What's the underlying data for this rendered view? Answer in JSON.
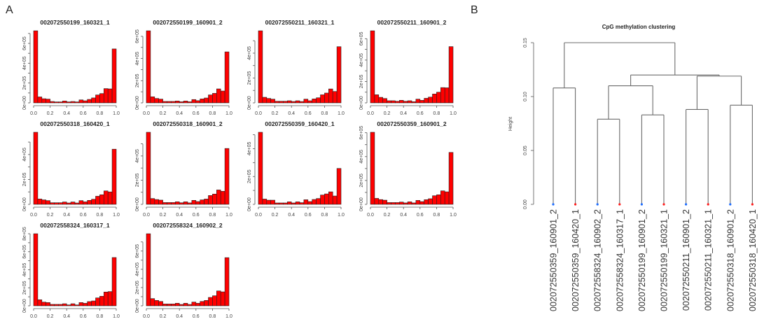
{
  "panel_labels": {
    "a": "A",
    "b": "B"
  },
  "colors": {
    "bar_fill": "#ff0000",
    "bar_stroke": "#222222",
    "branch": "#6b6b6b",
    "leaf_1": "#ff1a1a",
    "leaf_2": "#1a6bff"
  },
  "chart_data": [
    {
      "type": "bar",
      "title": "002072550199_160321_1",
      "xlim": [
        0,
        1
      ],
      "bins": 20,
      "x_ticks": [
        "0.0",
        "0.2",
        "0.4",
        "0.6",
        "0.8",
        "1.0"
      ],
      "y_tick_labels": [
        "0e+00",
        "2e+05",
        "4e+05",
        "6e+05"
      ],
      "values": [
        727000,
        60000,
        42000,
        38000,
        14000,
        10000,
        10000,
        19000,
        10000,
        14000,
        10000,
        30000,
        21000,
        35000,
        50000,
        80000,
        94000,
        144000,
        141000,
        544000
      ]
    },
    {
      "type": "bar",
      "title": "002072550199_160901_2",
      "xlim": [
        0,
        1
      ],
      "bins": 20,
      "x_ticks": [
        "0.0",
        "0.2",
        "0.4",
        "0.6",
        "0.8",
        "1.0"
      ],
      "y_tick_labels": [
        "0e+00",
        "2e+05",
        "4e+05",
        "6e+05"
      ],
      "values": [
        650000,
        55000,
        40000,
        34000,
        13000,
        13000,
        13000,
        17000,
        10000,
        17000,
        10000,
        30000,
        20000,
        36000,
        44000,
        72000,
        86000,
        126000,
        107000,
        460000
      ]
    },
    {
      "type": "bar",
      "title": "002072550211_160321_1",
      "xlim": [
        0,
        1
      ],
      "bins": 20,
      "x_ticks": [
        "0.0",
        "0.2",
        "0.4",
        "0.6",
        "0.8",
        "1.0"
      ],
      "y_tick_labels": [
        "0e+00",
        "2e+05",
        "4e+05"
      ],
      "values": [
        580000,
        45000,
        36000,
        30000,
        13000,
        13000,
        13000,
        17000,
        11000,
        17000,
        11000,
        30000,
        17000,
        32000,
        41000,
        65000,
        79000,
        112000,
        92000,
        452000
      ]
    },
    {
      "type": "bar",
      "title": "002072550211_160901_2",
      "xlim": [
        0,
        1
      ],
      "bins": 20,
      "x_ticks": [
        "0.0",
        "0.2",
        "0.4",
        "0.6",
        "0.8",
        "1.0"
      ],
      "y_tick_labels": [
        "0e+00",
        "2e+05",
        "4e+05",
        "6e+05"
      ],
      "values": [
        674000,
        76000,
        52000,
        41000,
        20000,
        20000,
        15000,
        24000,
        15000,
        20000,
        11000,
        35000,
        24000,
        43000,
        54000,
        83000,
        100000,
        143000,
        141000,
        526000
      ]
    },
    {
      "type": "bar",
      "title": "002072550318_160420_1",
      "xlim": [
        0,
        1
      ],
      "bins": 20,
      "x_ticks": [
        "0.0",
        "0.2",
        "0.4",
        "0.6",
        "0.8",
        "1.0"
      ],
      "y_tick_labels": [
        "0e+00",
        "2e+05",
        "4e+05"
      ],
      "values": [
        579000,
        43000,
        36000,
        30000,
        13000,
        13000,
        13000,
        19000,
        11000,
        19000,
        11000,
        30000,
        20000,
        32000,
        41000,
        65000,
        77000,
        108000,
        100000,
        443000
      ]
    },
    {
      "type": "bar",
      "title": "002072550318_160901_2",
      "xlim": [
        0,
        1
      ],
      "bins": 20,
      "x_ticks": [
        "0.0",
        "0.2",
        "0.4",
        "0.6",
        "0.8",
        "1.0"
      ],
      "y_tick_labels": [
        "0e+00",
        "2e+05",
        "4e+05",
        "6e+05"
      ],
      "values": [
        596000,
        48000,
        40000,
        35000,
        15000,
        15000,
        15000,
        21000,
        13000,
        21000,
        12000,
        33000,
        23000,
        37000,
        44000,
        73000,
        85000,
        119000,
        108000,
        462000
      ]
    },
    {
      "type": "bar",
      "title": "002072550359_160420_1",
      "xlim": [
        0,
        1
      ],
      "bins": 20,
      "x_ticks": [
        "0.0",
        "0.2",
        "0.4",
        "0.6",
        "0.8",
        "1.0"
      ],
      "y_tick_labels": [
        "0e+00",
        "2e+05",
        "4e+05"
      ],
      "values": [
        518000,
        38000,
        30000,
        30000,
        10000,
        10000,
        10000,
        18000,
        10000,
        18000,
        12000,
        33000,
        20000,
        35000,
        42000,
        67000,
        75000,
        90000,
        60000,
        258000
      ]
    },
    {
      "type": "bar",
      "title": "002072550359_160901_2",
      "xlim": [
        0,
        1
      ],
      "bins": 20,
      "x_ticks": [
        "0.0",
        "0.2",
        "0.4",
        "0.6",
        "0.8",
        "1.0"
      ],
      "y_tick_labels": [
        "0e+00",
        "2e+05",
        "4e+05",
        "6e+05"
      ],
      "values": [
        604000,
        50000,
        40000,
        35000,
        15000,
        15000,
        15000,
        19000,
        12000,
        21000,
        12000,
        33000,
        23000,
        39000,
        47000,
        72000,
        80000,
        113000,
        105000,
        435000
      ]
    },
    {
      "type": "bar",
      "title": "002072558324_160317_1",
      "xlim": [
        0,
        1
      ],
      "bins": 20,
      "x_ticks": [
        "0.0",
        "0.2",
        "0.4",
        "0.6",
        "0.8",
        "1.0"
      ],
      "y_tick_labels": [
        "0e+00",
        "2e+05",
        "4e+05",
        "6e+05",
        "8e+05"
      ],
      "values": [
        800000,
        67000,
        41000,
        36000,
        16000,
        16000,
        16000,
        23000,
        10000,
        23000,
        10000,
        36000,
        28000,
        47000,
        54000,
        88000,
        106000,
        153000,
        158000,
        536000
      ]
    },
    {
      "type": "bar",
      "title": "002072558324_160902_2",
      "xlim": [
        0,
        1
      ],
      "bins": 20,
      "x_ticks": [
        "0.0",
        "0.2",
        "0.4",
        "0.6",
        "0.8",
        "1.0"
      ],
      "y_tick_labels": [
        "0e+00",
        "2e+05",
        "4e+05",
        "6e+05",
        "8e+05"
      ],
      "values": [
        790000,
        79000,
        59000,
        48000,
        20000,
        20000,
        20000,
        28000,
        15000,
        28000,
        15000,
        41000,
        28000,
        48000,
        59000,
        92000,
        110000,
        163000,
        153000,
        528000
      ]
    },
    {
      "type": "dendrogram",
      "title": "CpG methylation clustering",
      "ylabel": "Height",
      "ylim": [
        0,
        0.15
      ],
      "y_tick_labels": [
        "0.00",
        "0.05",
        "0.10",
        "0.15"
      ],
      "leaves": [
        {
          "label": "002072550359_160901_2",
          "group": "2"
        },
        {
          "label": "002072550359_160420_1",
          "group": "1"
        },
        {
          "label": "002072558324_160902_2",
          "group": "2"
        },
        {
          "label": "002072558324_160317_1",
          "group": "1"
        },
        {
          "label": "002072550199_160901_2",
          "group": "2"
        },
        {
          "label": "002072550199_160321_1",
          "group": "1"
        },
        {
          "label": "002072550211_160901_2",
          "group": "2"
        },
        {
          "label": "002072550211_160321_1",
          "group": "1"
        },
        {
          "label": "002072550318_160901_2",
          "group": "2"
        },
        {
          "label": "002072550318_160420_1",
          "group": "1"
        }
      ],
      "tree": {
        "height": 0.15,
        "children": [
          {
            "height": 0.108,
            "children": [
              0,
              1
            ]
          },
          {
            "height": 0.12,
            "children": [
              {
                "height": 0.11,
                "children": [
                  {
                    "height": 0.079,
                    "children": [
                      2,
                      3
                    ]
                  },
                  {
                    "height": 0.083,
                    "children": [
                      4,
                      5
                    ]
                  }
                ]
              },
              {
                "height": 0.119,
                "children": [
                  {
                    "height": 0.088,
                    "children": [
                      6,
                      7
                    ]
                  },
                  {
                    "height": 0.092,
                    "children": [
                      8,
                      9
                    ]
                  }
                ]
              }
            ]
          }
        ]
      }
    }
  ]
}
